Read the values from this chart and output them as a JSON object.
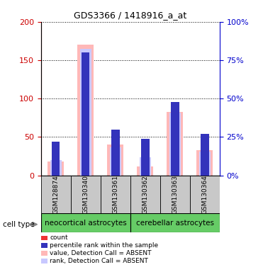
{
  "title": "GDS3366 / 1418916_a_at",
  "samples": [
    "GSM128874",
    "GSM130340",
    "GSM130361",
    "GSM130362",
    "GSM130363",
    "GSM130364"
  ],
  "value_absent": [
    18,
    170,
    40,
    12,
    83,
    33
  ],
  "rank_absent": [
    20,
    165,
    37,
    24,
    82,
    31
  ],
  "count_values": [
    8,
    5,
    9,
    7,
    8,
    8
  ],
  "percentile_values": [
    22,
    80,
    30,
    24,
    48,
    27
  ],
  "count_color": "#ee3333",
  "percentile_color": "#3333bb",
  "value_absent_color": "#ffb8b8",
  "rank_absent_color": "#c8c8ff",
  "left_axis_color": "#cc0000",
  "right_axis_color": "#0000cc",
  "bg_label": "#c8c8c8",
  "group_color": "#66cc66",
  "ylim_left": [
    0,
    200
  ],
  "ylim_right": [
    0,
    100
  ],
  "yticks_left": [
    0,
    50,
    100,
    150,
    200
  ],
  "yticks_right": [
    0,
    25,
    50,
    75,
    100
  ],
  "ytick_labels_left": [
    "0",
    "50",
    "100",
    "150",
    "200"
  ],
  "ytick_labels_right": [
    "0%",
    "25%",
    "50%",
    "75%",
    "100%"
  ],
  "legend_items": [
    {
      "label": "count",
      "color": "#ee3333"
    },
    {
      "label": "percentile rank within the sample",
      "color": "#3333bb"
    },
    {
      "label": "value, Detection Call = ABSENT",
      "color": "#ffb8b8"
    },
    {
      "label": "rank, Detection Call = ABSENT",
      "color": "#c8c8ff"
    }
  ]
}
